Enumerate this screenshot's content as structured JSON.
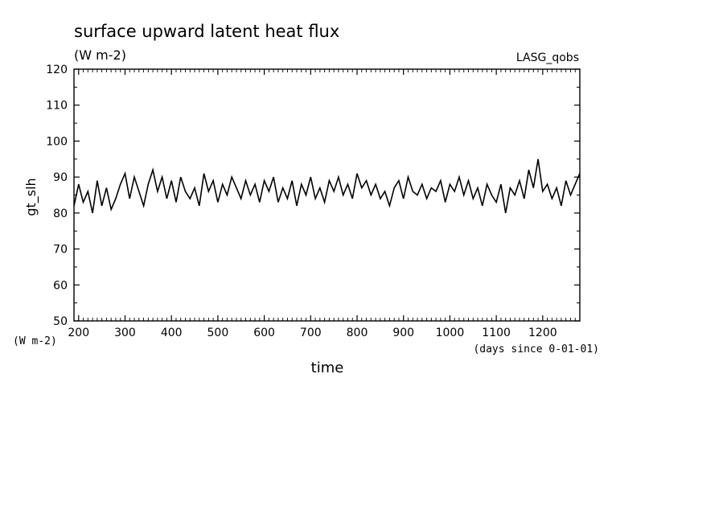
{
  "chart_data": {
    "type": "line",
    "title": "surface upward latent heat flux",
    "subtitle": "(W m-2)",
    "source_label": "LASG_qobs",
    "xlabel": "time",
    "x_unit": "(days since 0-01-01)",
    "ylabel": "gt_slh",
    "y_unit": "(W m-2)",
    "xlim": [
      190,
      1280
    ],
    "ylim": [
      50,
      120
    ],
    "x_ticks": [
      "200",
      "300",
      "400",
      "500",
      "600",
      "700",
      "800",
      "900",
      "1000",
      "1100",
      "1200"
    ],
    "y_ticks": [
      "50",
      "60",
      "70",
      "80",
      "90",
      "100",
      "110",
      "120"
    ],
    "line_color": "#000000",
    "series": [
      {
        "x": [
          190,
          200,
          210,
          220,
          230,
          240,
          250,
          260,
          270,
          280,
          290,
          300,
          310,
          320,
          330,
          340,
          350,
          360,
          370,
          380,
          390,
          400,
          410,
          420,
          430,
          440,
          450,
          460,
          470,
          480,
          490,
          500,
          510,
          520,
          530,
          540,
          550,
          560,
          570,
          580,
          590,
          600,
          610,
          620,
          630,
          640,
          650,
          660,
          670,
          680,
          690,
          700,
          710,
          720,
          730,
          740,
          750,
          760,
          770,
          780,
          790,
          800,
          810,
          820,
          830,
          840,
          850,
          860,
          870,
          880,
          890,
          900,
          910,
          920,
          930,
          940,
          950,
          960,
          970,
          980,
          990,
          1000,
          1010,
          1020,
          1030,
          1040,
          1050,
          1060,
          1070,
          1080,
          1090,
          1100,
          1110,
          1120,
          1130,
          1140,
          1150,
          1160,
          1170,
          1180,
          1190,
          1200,
          1210,
          1220,
          1230,
          1240,
          1250,
          1260,
          1270,
          1280
        ],
        "y": [
          82,
          88,
          83,
          86,
          80,
          89,
          82,
          87,
          81,
          84,
          88,
          91,
          84,
          90,
          86,
          82,
          88,
          92,
          86,
          90,
          84,
          89,
          83,
          90,
          86,
          84,
          87,
          82,
          91,
          86,
          89,
          83,
          88,
          85,
          90,
          87,
          84,
          89,
          85,
          88,
          83,
          89,
          86,
          90,
          83,
          87,
          84,
          89,
          82,
          88,
          85,
          90,
          84,
          87,
          83,
          89,
          86,
          90,
          85,
          88,
          84,
          91,
          87,
          89,
          85,
          88,
          84,
          86,
          82,
          87,
          89,
          84,
          90,
          86,
          85,
          88,
          84,
          87,
          86,
          89,
          83,
          88,
          86,
          90,
          85,
          89,
          84,
          87,
          82,
          88,
          85,
          83,
          88,
          80,
          87,
          85,
          89,
          84,
          92,
          87,
          95,
          86,
          88,
          84,
          87,
          82,
          89,
          85,
          88,
          91
        ]
      }
    ]
  }
}
